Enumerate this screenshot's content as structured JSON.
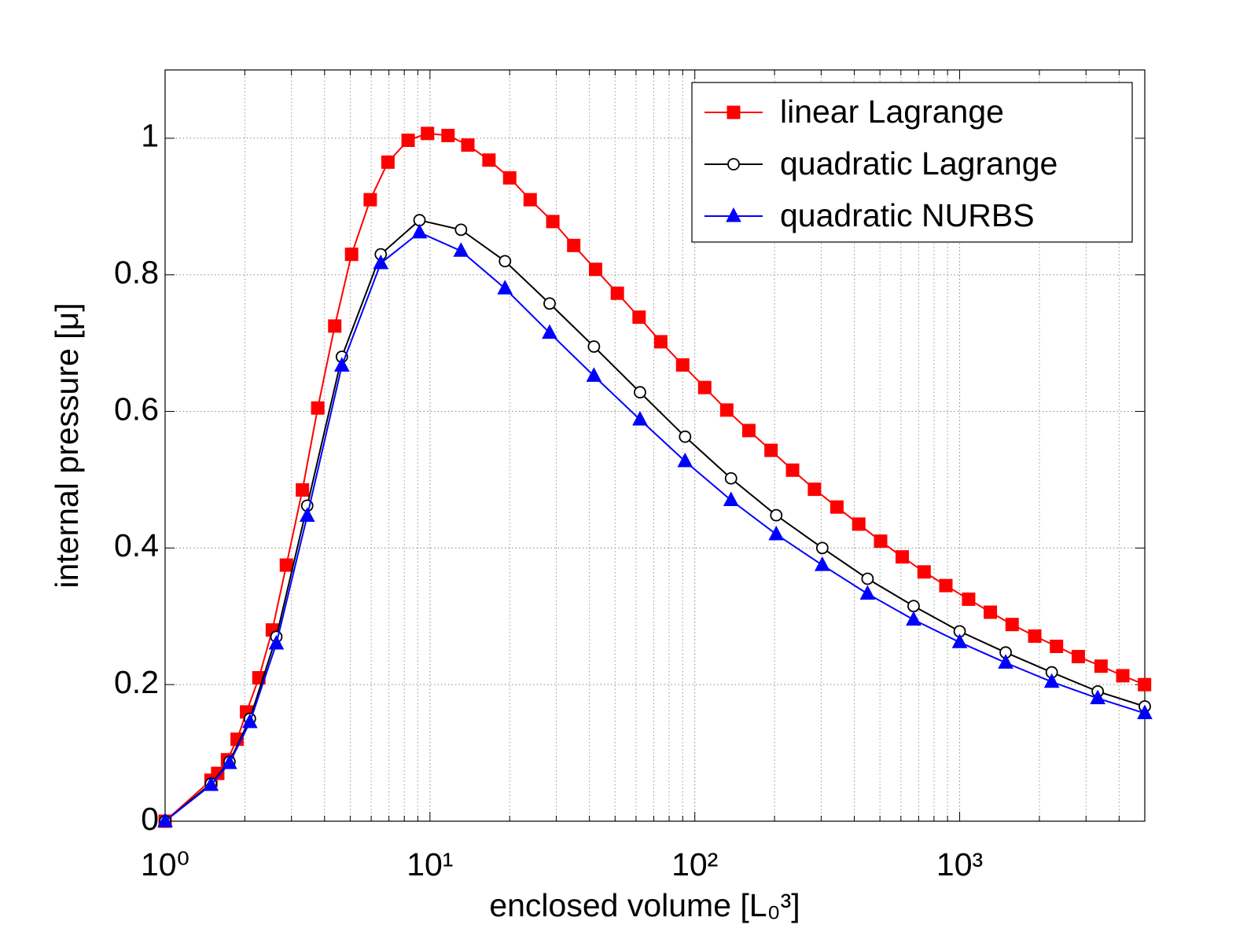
{
  "chart_data": {
    "type": "line",
    "xlabel": "enclosed volume   [L₀³]",
    "ylabel": "internal pressure   [μ]",
    "xscale": "log",
    "xlim": [
      1,
      5000
    ],
    "ylim": [
      0,
      1.1
    ],
    "xticks": [
      {
        "value": 1,
        "label": "10⁰"
      },
      {
        "value": 10,
        "label": "10¹"
      },
      {
        "value": 100,
        "label": "10²"
      },
      {
        "value": 1000,
        "label": "10³"
      }
    ],
    "yticks": [
      0,
      0.2,
      0.4,
      0.6,
      0.8,
      1
    ],
    "grid": true,
    "minor_grid": true,
    "legend": "upper right",
    "series": [
      {
        "name": "linear Lagrange",
        "color": "#ff0000",
        "marker": "square",
        "x": [
          1,
          1.49,
          1.58,
          1.72,
          1.87,
          2.03,
          2.26,
          2.54,
          2.87,
          3.3,
          3.77,
          4.37,
          5.06,
          5.95,
          6.94,
          8.27,
          9.79,
          11.7,
          13.9,
          16.7,
          20,
          23.9,
          29.1,
          34.9,
          42.2,
          51,
          61.6,
          74.4,
          90,
          109,
          132,
          160,
          194,
          234,
          283,
          344,
          416,
          503,
          607,
          734,
          887,
          1081,
          1306,
          1578,
          1921,
          2321,
          2805,
          3418,
          4130,
          4990
        ],
        "values": [
          0,
          0.06,
          0.07,
          0.09,
          0.12,
          0.16,
          0.21,
          0.28,
          0.375,
          0.485,
          0.605,
          0.725,
          0.83,
          0.91,
          0.965,
          0.997,
          1.007,
          1.004,
          0.99,
          0.968,
          0.942,
          0.91,
          0.878,
          0.843,
          0.808,
          0.773,
          0.738,
          0.702,
          0.668,
          0.635,
          0.602,
          0.572,
          0.543,
          0.514,
          0.486,
          0.46,
          0.435,
          0.41,
          0.387,
          0.365,
          0.345,
          0.325,
          0.306,
          0.288,
          0.271,
          0.256,
          0.241,
          0.227,
          0.213,
          0.2
        ]
      },
      {
        "name": "quadratic Lagrange",
        "color": "#000000",
        "marker": "circle",
        "x": [
          1,
          1.49,
          1.75,
          2.09,
          2.63,
          3.44,
          4.65,
          6.52,
          9.13,
          13.1,
          19.2,
          28.3,
          41.6,
          62.1,
          91.9,
          137,
          203,
          303,
          449,
          670,
          1000,
          1492,
          2227,
          3321,
          5000
        ],
        "values": [
          0,
          0.055,
          0.087,
          0.15,
          0.27,
          0.462,
          0.68,
          0.83,
          0.88,
          0.866,
          0.82,
          0.758,
          0.695,
          0.628,
          0.563,
          0.502,
          0.448,
          0.4,
          0.355,
          0.315,
          0.278,
          0.247,
          0.218,
          0.19,
          0.168
        ]
      },
      {
        "name": "quadratic NURBS",
        "color": "#0000ff",
        "marker": "triangle",
        "x": [
          1,
          1.49,
          1.75,
          2.09,
          2.63,
          3.44,
          4.65,
          6.52,
          9.13,
          13.1,
          19.2,
          28.3,
          41.6,
          62.1,
          91.9,
          137,
          203,
          303,
          449,
          670,
          1000,
          1492,
          2227,
          3321,
          5000
        ],
        "values": [
          0,
          0.053,
          0.085,
          0.145,
          0.26,
          0.447,
          0.667,
          0.817,
          0.862,
          0.835,
          0.78,
          0.715,
          0.652,
          0.588,
          0.527,
          0.47,
          0.42,
          0.375,
          0.333,
          0.295,
          0.262,
          0.232,
          0.204,
          0.18,
          0.158
        ]
      }
    ]
  }
}
